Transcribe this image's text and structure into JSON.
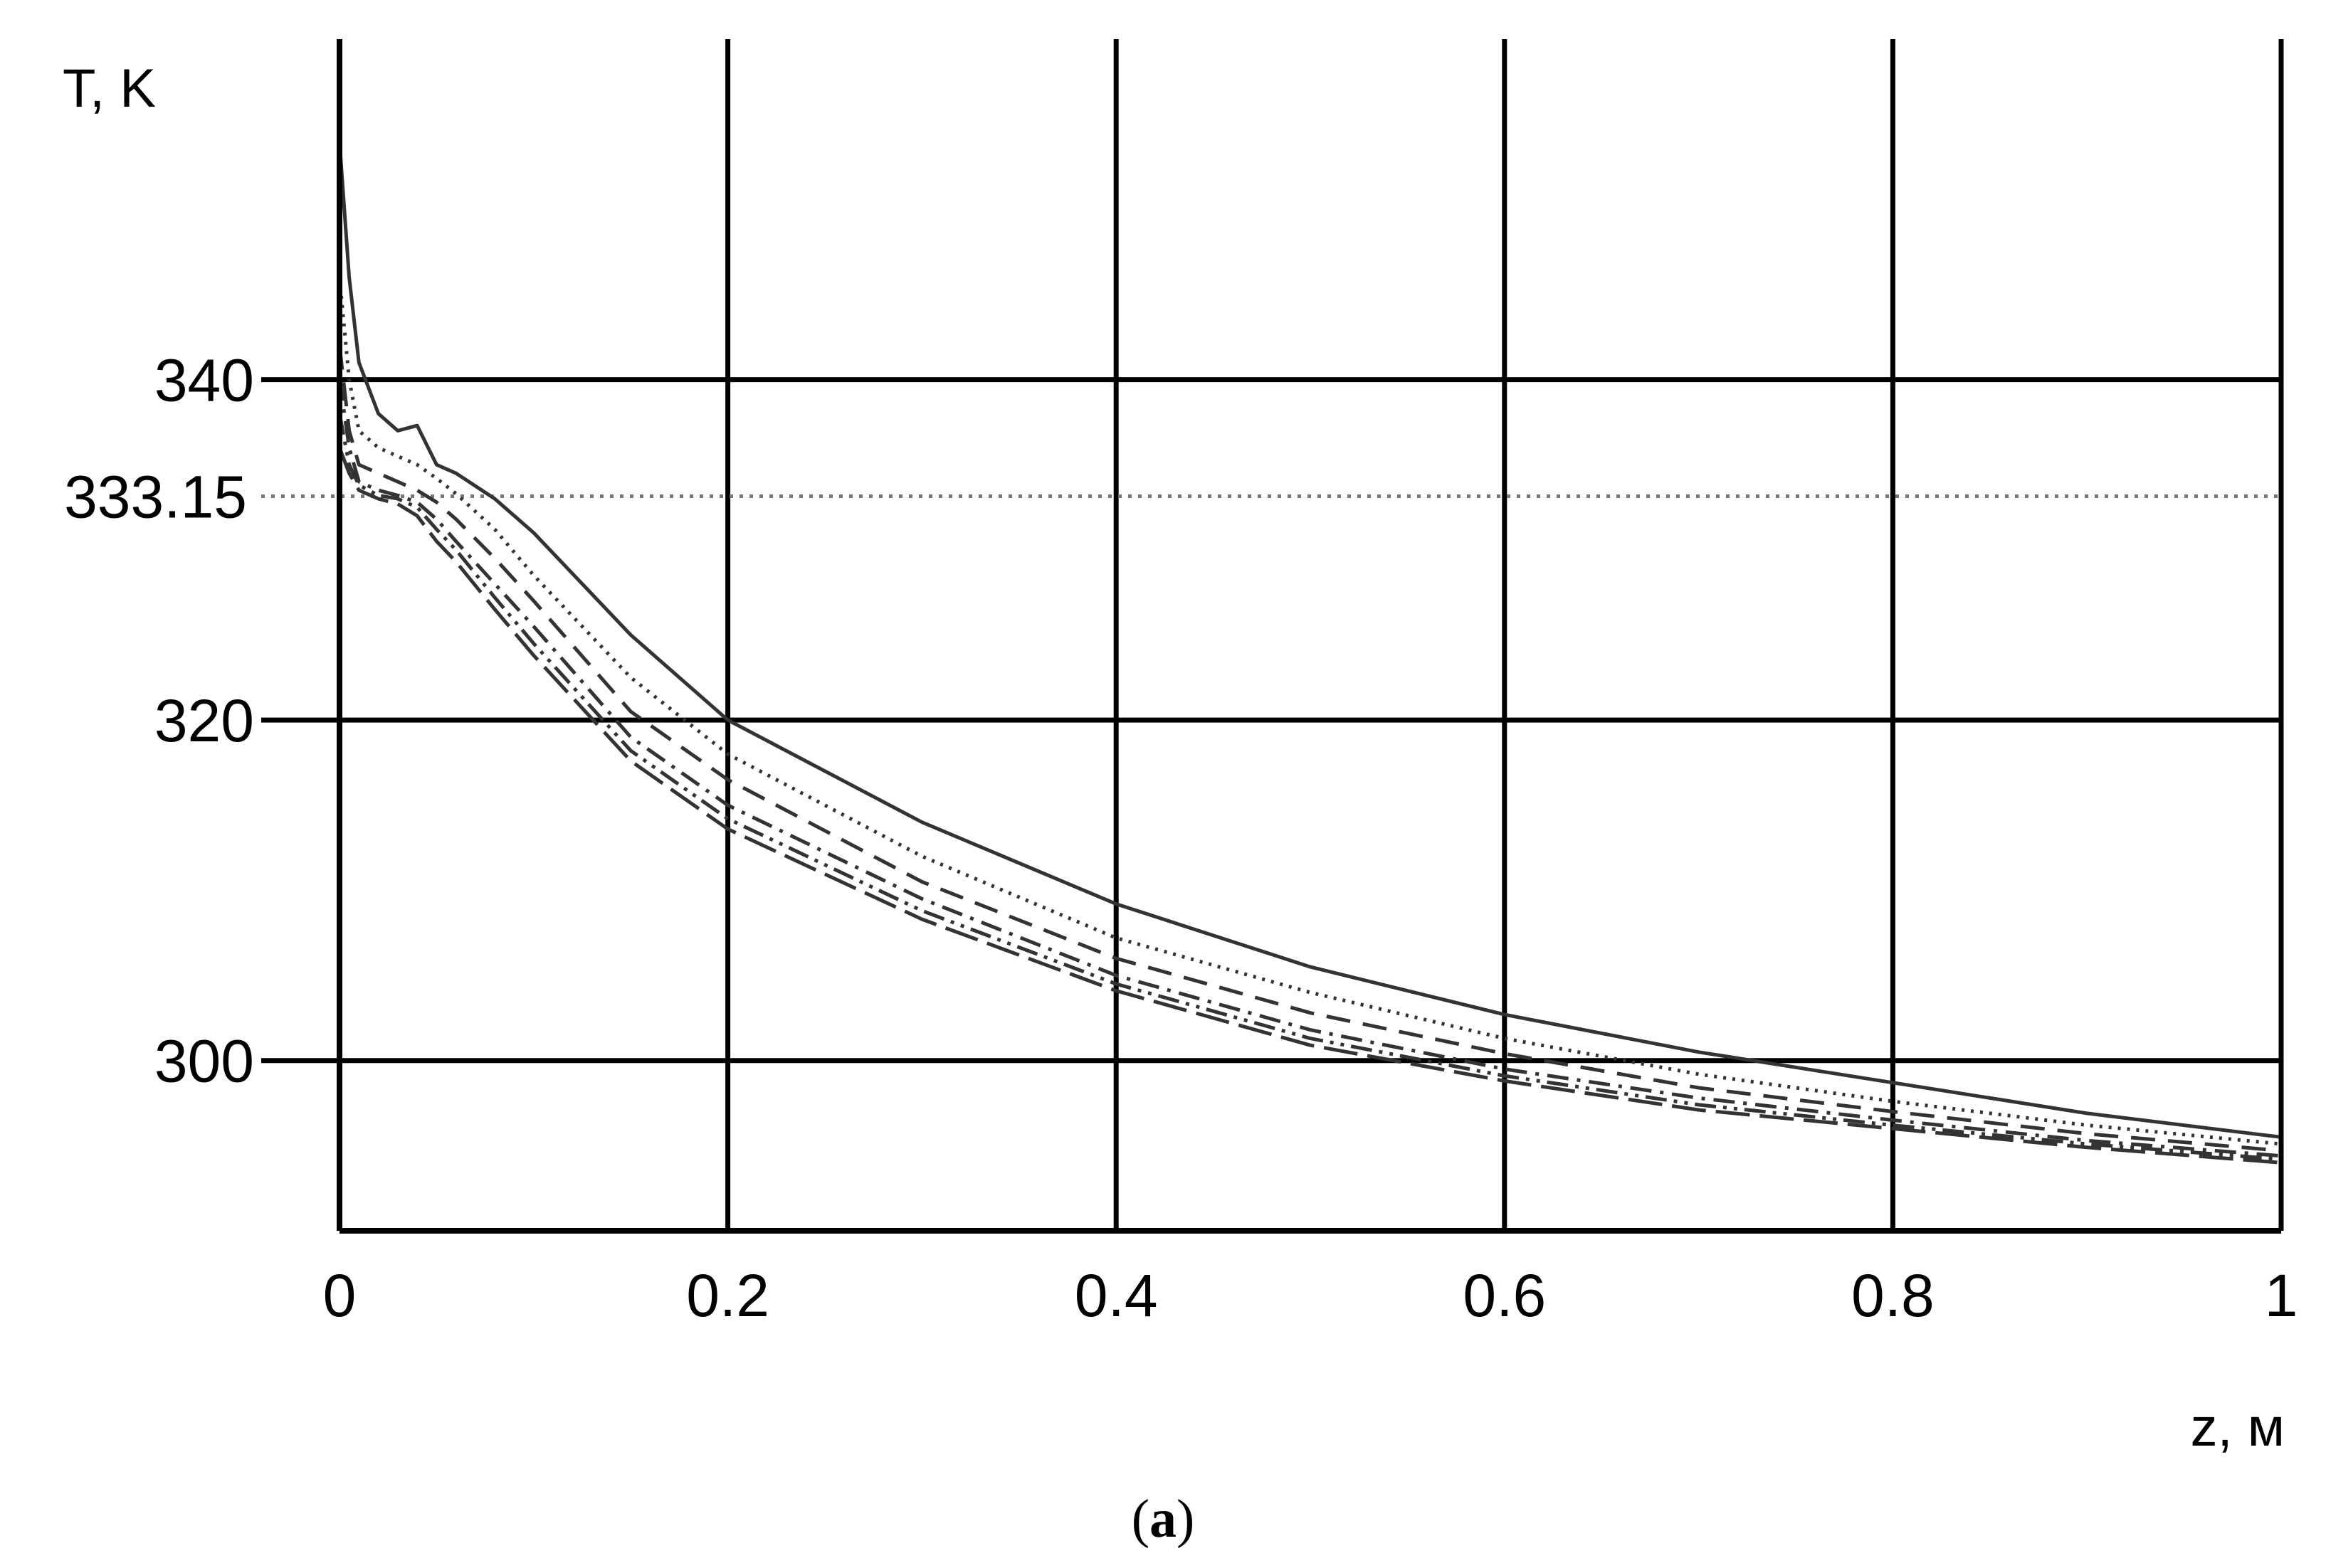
{
  "chart_data": {
    "type": "line",
    "ylabel": "T, K",
    "xlabel": "z, м",
    "caption": {
      "open": "(",
      "letter": "a",
      "close": ")"
    },
    "xlim": [
      0,
      1
    ],
    "ylim": [
      290,
      360
    ],
    "grid": true,
    "x_ticks": [
      {
        "v": 0,
        "label": "0"
      },
      {
        "v": 0.2,
        "label": "0.2"
      },
      {
        "v": 0.4,
        "label": "0.4"
      },
      {
        "v": 0.6,
        "label": "0.6"
      },
      {
        "v": 0.8,
        "label": "0.8"
      },
      {
        "v": 1,
        "label": "1"
      }
    ],
    "y_ticks": [
      {
        "v": 300,
        "label": "300"
      },
      {
        "v": 320,
        "label": "320"
      },
      {
        "v": 340,
        "label": "340"
      }
    ],
    "reference_line": {
      "y": 333.15,
      "label": "333.15"
    },
    "series": [
      {
        "style": "solid",
        "x": [
          0,
          0.005,
          0.01,
          0.02,
          0.03,
          0.04,
          0.05,
          0.06,
          0.08,
          0.1,
          0.15,
          0.2,
          0.3,
          0.4,
          0.5,
          0.6,
          0.7,
          0.8,
          0.9,
          1.0
        ],
        "y": [
          354,
          346,
          341,
          338,
          337,
          337.3,
          335,
          334.5,
          333,
          331,
          325,
          320,
          314,
          309.2,
          305.5,
          302.7,
          300.5,
          298.7,
          296.9,
          295.5
        ]
      },
      {
        "style": "dotted",
        "x": [
          0,
          0.005,
          0.01,
          0.02,
          0.03,
          0.04,
          0.05,
          0.06,
          0.08,
          0.1,
          0.15,
          0.2,
          0.3,
          0.4,
          0.5,
          0.6,
          0.7,
          0.8,
          0.9,
          1.0
        ],
        "y": [
          346,
          340,
          337,
          336,
          335.5,
          335,
          334.2,
          333.3,
          331.2,
          328.5,
          322.5,
          318,
          312,
          307.2,
          304,
          301.3,
          299.2,
          297.6,
          296.2,
          295.1
        ]
      },
      {
        "style": "dashed",
        "x": [
          0,
          0.005,
          0.01,
          0.02,
          0.03,
          0.04,
          0.05,
          0.06,
          0.08,
          0.1,
          0.15,
          0.2,
          0.3,
          0.4,
          0.5,
          0.6,
          0.7,
          0.8,
          0.9,
          1.0
        ],
        "y": [
          342,
          337,
          335,
          334.5,
          334,
          333.5,
          332.8,
          331.8,
          329.5,
          327,
          320.5,
          316.5,
          310.5,
          306,
          302.8,
          300.4,
          298.4,
          297,
          295.7,
          294.7
        ]
      },
      {
        "style": "dashdot",
        "x": [
          0,
          0.005,
          0.01,
          0.02,
          0.03,
          0.04,
          0.05,
          0.06,
          0.08,
          0.1,
          0.15,
          0.2,
          0.3,
          0.4,
          0.5,
          0.6,
          0.7,
          0.8,
          0.9,
          1.0
        ],
        "y": [
          340,
          336,
          334,
          333.5,
          333.2,
          332.8,
          331.8,
          330.5,
          328,
          325.5,
          319,
          315,
          309.5,
          305,
          301.8,
          299.5,
          297.8,
          296.5,
          295.3,
          294.4
        ]
      },
      {
        "style": "dashdotdot",
        "x": [
          0,
          0.005,
          0.01,
          0.02,
          0.03,
          0.04,
          0.05,
          0.06,
          0.08,
          0.1,
          0.15,
          0.2,
          0.3,
          0.4,
          0.5,
          0.6,
          0.7,
          0.8,
          0.9,
          1.0
        ],
        "y": [
          338,
          335,
          333.8,
          333.2,
          333,
          332.5,
          331.2,
          330,
          327.2,
          324.5,
          318.2,
          314.2,
          308.8,
          304.5,
          301.3,
          299.1,
          297.4,
          296.2,
          295.1,
          294.2
        ]
      },
      {
        "style": "longdash",
        "x": [
          0,
          0.005,
          0.01,
          0.02,
          0.03,
          0.04,
          0.05,
          0.06,
          0.08,
          0.1,
          0.15,
          0.2,
          0.3,
          0.4,
          0.5,
          0.6,
          0.7,
          0.8,
          0.9,
          1.0
        ],
        "y": [
          336,
          334.5,
          333.5,
          333,
          332.7,
          332,
          330.5,
          329.3,
          326.5,
          323.8,
          317.6,
          313.6,
          308.3,
          304.1,
          300.9,
          298.8,
          297.1,
          296,
          294.9,
          294.0
        ]
      }
    ]
  }
}
